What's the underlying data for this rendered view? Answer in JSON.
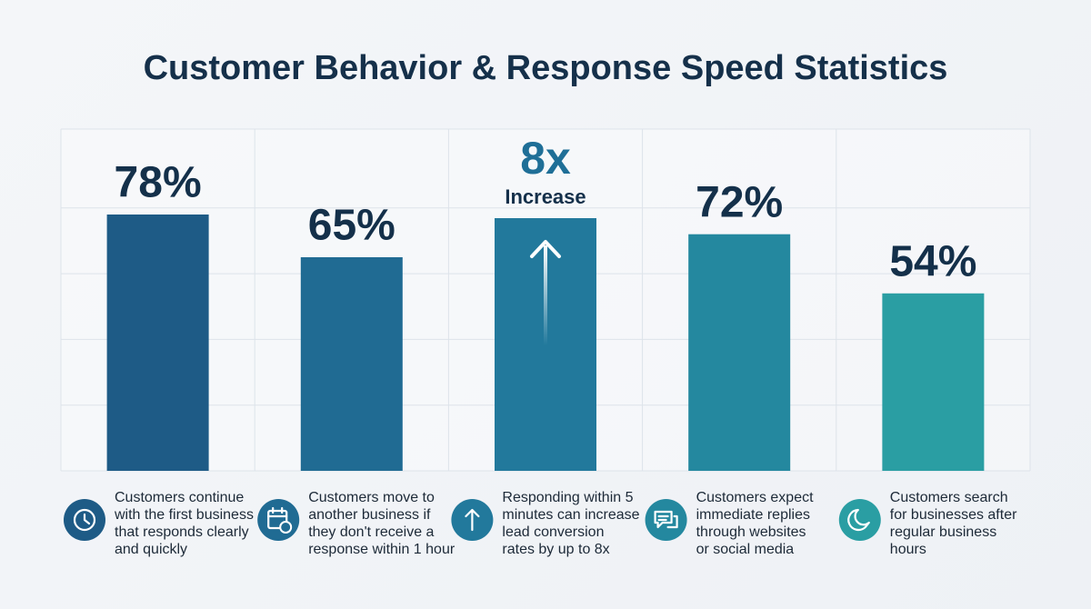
{
  "chart_data": {
    "type": "bar",
    "title": "Customer Behavior & Response Speed Statistics",
    "values": [
      78,
      65,
      null,
      72,
      54
    ],
    "value_labels": [
      "78%",
      "65%",
      null,
      "72%",
      "54%"
    ],
    "colors": [
      "#1e5b86",
      "#206b93",
      "#22799c",
      "#24889f",
      "#2a9ea3"
    ],
    "annotation": {
      "value": 8,
      "label": "8x",
      "text": "Increase"
    },
    "descriptions": [
      [
        "Customers continue",
        "with the first business",
        "that responds clearly",
        "and quickly"
      ],
      [
        "Customers move to",
        "another business if",
        "they don't receive a",
        "response within 1 hour"
      ],
      [
        "Responding within 5",
        "minutes can increase",
        "lead conversion",
        "rates by up to 8x"
      ],
      [
        "Customers expect",
        "immediate replies",
        "through websites",
        "or social media"
      ],
      [
        "Customers search",
        "for businesses after",
        "regular business",
        "hours"
      ]
    ],
    "ylim": [
      0,
      104
    ],
    "yticks": [
      0,
      20,
      40,
      60,
      80
    ],
    "grid": true
  }
}
